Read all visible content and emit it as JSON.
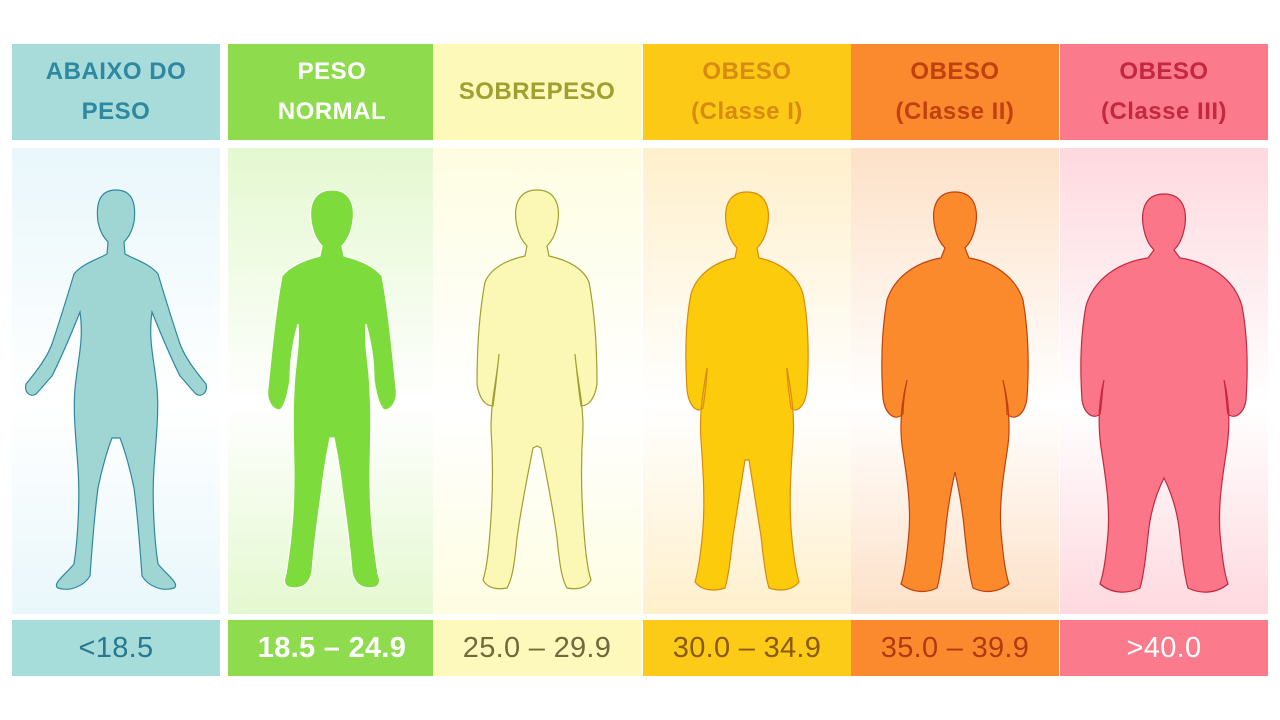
{
  "categories": [
    {
      "id": "underweight",
      "label_line1": "ABAIXO DO",
      "label_line2": "PESO",
      "range": "<18.5",
      "colors": {
        "header_bg": "#a8dcdb",
        "header_text": "#2e88a0",
        "panel_bg": "#e9f7fb",
        "figure": "#9fd6d4",
        "footer_bg": "#a6dcda",
        "footer_text": "#27778f"
      }
    },
    {
      "id": "normal",
      "label_line1": "PESO",
      "label_line2": "NORMAL",
      "range": "18.5 – 24.9",
      "colors": {
        "header_bg": "#8edb4e",
        "header_text": "#ffffff",
        "panel_bg": "#e4f8d0",
        "figure": "#7ddb3c",
        "footer_bg": "#8edb4e",
        "footer_text": "#ffffff"
      }
    },
    {
      "id": "overweight",
      "label_line1": "SOBREPESO",
      "label_line2": "",
      "range": "25.0 – 29.9",
      "colors": {
        "header_bg": "#fdf9b8",
        "header_text": "#a0a030",
        "panel_bg": "#fefde2",
        "figure": "#fbf7b5",
        "footer_bg": "#fdf9bd",
        "footer_text": "#6e6a3a"
      }
    },
    {
      "id": "obese1",
      "label_line1": "OBESO",
      "label_line2": "(Classe I)",
      "range": "30.0 – 34.9",
      "colors": {
        "header_bg": "#fcca16",
        "header_text": "#d98a10",
        "panel_bg": "#fff0cc",
        "figure": "#fbcb0c",
        "footer_bg": "#fccb18",
        "footer_text": "#8a5a08"
      }
    },
    {
      "id": "obese2",
      "label_line1": "OBESO",
      "label_line2": "(Classe II)",
      "range": "35.0 – 39.9",
      "colors": {
        "header_bg": "#fb8a2e",
        "header_text": "#c0410e",
        "panel_bg": "#fde1c8",
        "figure": "#fb8a2c",
        "footer_bg": "#fb8a2e",
        "footer_text": "#b03a10"
      }
    },
    {
      "id": "obese3",
      "label_line1": "OBESO",
      "label_line2": "(Classe III)",
      "range": ">40.0",
      "colors": {
        "header_bg": "#fb7b8c",
        "header_text": "#c4283e",
        "panel_bg": "#fed9df",
        "figure": "#fa7688",
        "footer_bg": "#fb7b8c",
        "footer_text": "#ffffff"
      }
    }
  ]
}
